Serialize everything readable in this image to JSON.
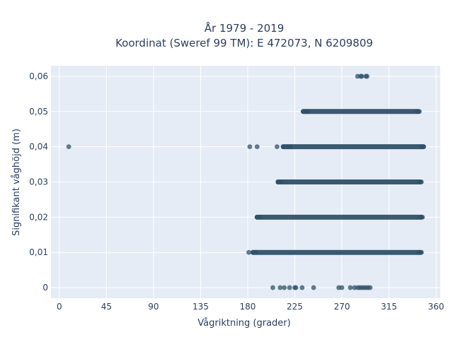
{
  "chart_data": {
    "type": "scatter",
    "title": "År 1979 - 2019",
    "subtitle": "Koordinat (Sweref 99 TM): E 472073, N 6209809",
    "xlabel": "Vågriktning (grader)",
    "ylabel": "Signifikant våghöjd (m)",
    "xlim": [
      -8,
      364
    ],
    "ylim": [
      -0.003,
      0.063
    ],
    "x_ticks": [
      0,
      45,
      90,
      135,
      180,
      225,
      270,
      315,
      360
    ],
    "x_tick_labels": [
      "0",
      "45",
      "90",
      "135",
      "180",
      "225",
      "270",
      "315",
      "360"
    ],
    "y_ticks": [
      0,
      0.01,
      0.02,
      0.03,
      0.04,
      0.05,
      0.06
    ],
    "y_tick_labels": [
      "0",
      "0,01",
      "0,02",
      "0,03",
      "0,04",
      "0,05",
      "0,06"
    ],
    "grid": true,
    "background_color": "#e5ecf6",
    "marker_color": "#2f5168",
    "bands": [
      {
        "y": 0.05,
        "x_start": 233,
        "x_end": 343
      },
      {
        "y": 0.04,
        "x_start": 214,
        "x_end": 348
      },
      {
        "y": 0.03,
        "x_start": 209,
        "x_end": 345
      },
      {
        "y": 0.02,
        "x_start": 189,
        "x_end": 346
      },
      {
        "y": 0.01,
        "x_start": 185,
        "x_end": 345
      }
    ],
    "points": [
      {
        "x": 285,
        "y": 0.06
      },
      {
        "x": 288,
        "y": 0.06
      },
      {
        "x": 289,
        "y": 0.06
      },
      {
        "x": 293,
        "y": 0.06
      },
      {
        "x": 294,
        "y": 0.06
      },
      {
        "x": 234,
        "y": 0.05
      },
      {
        "x": 236,
        "y": 0.05
      },
      {
        "x": 238,
        "y": 0.05
      },
      {
        "x": 342,
        "y": 0.05
      },
      {
        "x": 344,
        "y": 0.05
      },
      {
        "x": 9,
        "y": 0.04
      },
      {
        "x": 182,
        "y": 0.04
      },
      {
        "x": 189,
        "y": 0.04
      },
      {
        "x": 208,
        "y": 0.04
      },
      {
        "x": 214,
        "y": 0.04
      },
      {
        "x": 218,
        "y": 0.04
      },
      {
        "x": 221,
        "y": 0.04
      },
      {
        "x": 346,
        "y": 0.04
      },
      {
        "x": 348,
        "y": 0.04
      },
      {
        "x": 209,
        "y": 0.03
      },
      {
        "x": 212,
        "y": 0.03
      },
      {
        "x": 344,
        "y": 0.03
      },
      {
        "x": 346,
        "y": 0.03
      },
      {
        "x": 189,
        "y": 0.02
      },
      {
        "x": 192,
        "y": 0.02
      },
      {
        "x": 345,
        "y": 0.02
      },
      {
        "x": 347,
        "y": 0.02
      },
      {
        "x": 181,
        "y": 0.01
      },
      {
        "x": 185,
        "y": 0.01
      },
      {
        "x": 188,
        "y": 0.01
      },
      {
        "x": 344,
        "y": 0.01
      },
      {
        "x": 346,
        "y": 0.01
      },
      {
        "x": 204,
        "y": 0
      },
      {
        "x": 211,
        "y": 0
      },
      {
        "x": 215,
        "y": 0
      },
      {
        "x": 220,
        "y": 0
      },
      {
        "x": 225,
        "y": 0
      },
      {
        "x": 226,
        "y": 0
      },
      {
        "x": 232,
        "y": 0
      },
      {
        "x": 243,
        "y": 0
      },
      {
        "x": 267,
        "y": 0
      },
      {
        "x": 270,
        "y": 0
      },
      {
        "x": 278,
        "y": 0
      },
      {
        "x": 282,
        "y": 0
      },
      {
        "x": 285,
        "y": 0
      },
      {
        "x": 287,
        "y": 0
      },
      {
        "x": 289,
        "y": 0
      },
      {
        "x": 291,
        "y": 0
      },
      {
        "x": 293,
        "y": 0
      },
      {
        "x": 295,
        "y": 0
      },
      {
        "x": 297,
        "y": 0
      }
    ]
  }
}
